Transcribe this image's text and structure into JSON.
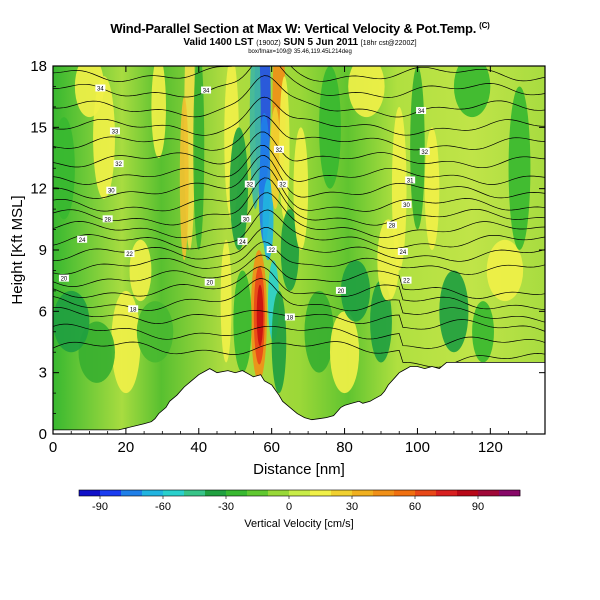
{
  "title": "Wind-Parallel Section at Max W: Vertical Velocity & Pot.Temp.",
  "title_mark": "(C)",
  "subtitle_main": "Valid 1400 LST",
  "subtitle_small": "(1900Z)",
  "subtitle_rest": "SUN 5 Jun 2011",
  "subtitle_small2": "[18hr cst@2200Z]",
  "subsubtitle": "box/fmax=109@ 35.46,119.45L214deg",
  "chart_data": {
    "type": "heatmap",
    "xlabel": "Distance [nm]",
    "ylabel": "Height [Kft MSL]",
    "xlim": [
      0,
      135
    ],
    "ylim": [
      0,
      18
    ],
    "x_ticks": [
      "0",
      "20",
      "40",
      "60",
      "80",
      "100",
      "120"
    ],
    "x_tick_values": [
      0,
      20,
      40,
      60,
      80,
      100,
      120
    ],
    "y_ticks": [
      "0",
      "3",
      "6",
      "9",
      "12",
      "15",
      "18"
    ],
    "y_tick_values": [
      0,
      3,
      6,
      9,
      12,
      15,
      18
    ],
    "terrain": {
      "x": [
        0,
        18,
        25,
        27,
        28,
        29,
        31,
        32,
        34,
        36,
        38,
        40,
        42,
        43,
        44,
        45,
        48,
        50,
        52,
        54,
        55,
        57,
        58,
        60,
        62,
        63,
        65,
        67,
        69,
        71,
        73,
        75,
        77,
        78,
        79,
        80,
        82,
        84,
        85,
        87,
        88,
        90,
        91,
        92,
        94,
        95,
        96,
        97,
        98,
        100,
        102,
        104,
        106,
        108,
        135
      ],
      "y": [
        0.2,
        0.2,
        0.5,
        0.6,
        0.75,
        1.0,
        1.3,
        1.6,
        1.9,
        2.3,
        2.6,
        2.9,
        3.1,
        3.2,
        3.1,
        3.0,
        3.1,
        3.0,
        3.1,
        2.9,
        2.8,
        2.9,
        2.6,
        2.4,
        1.9,
        1.6,
        1.3,
        1.0,
        0.8,
        0.7,
        0.75,
        0.8,
        0.9,
        1.1,
        1.3,
        1.4,
        1.5,
        1.6,
        1.5,
        1.6,
        1.7,
        1.9,
        2.1,
        2.4,
        2.8,
        3.0,
        3.1,
        3.2,
        3.3,
        3.3,
        3.2,
        3.3,
        3.2,
        3.5,
        3.5
      ]
    },
    "contour_labels": [
      {
        "text": "34",
        "x": 13,
        "y": 16.9
      },
      {
        "text": "34",
        "x": 42,
        "y": 16.8
      },
      {
        "text": "34",
        "x": 101,
        "y": 15.8
      },
      {
        "text": "33",
        "x": 17,
        "y": 14.8
      },
      {
        "text": "32",
        "x": 18,
        "y": 13.2
      },
      {
        "text": "32",
        "x": 102,
        "y": 13.8
      },
      {
        "text": "31",
        "x": 98,
        "y": 12.4
      },
      {
        "text": "32",
        "x": 62,
        "y": 13.9
      },
      {
        "text": "32",
        "x": 63,
        "y": 12.2
      },
      {
        "text": "32",
        "x": 54,
        "y": 12.2
      },
      {
        "text": "30",
        "x": 16,
        "y": 11.9
      },
      {
        "text": "30",
        "x": 97,
        "y": 11.2
      },
      {
        "text": "30",
        "x": 53,
        "y": 10.5
      },
      {
        "text": "28",
        "x": 15,
        "y": 10.5
      },
      {
        "text": "28",
        "x": 93,
        "y": 10.2
      },
      {
        "text": "24",
        "x": 8,
        "y": 9.5
      },
      {
        "text": "24",
        "x": 52,
        "y": 9.4
      },
      {
        "text": "24",
        "x": 96,
        "y": 8.9
      },
      {
        "text": "22",
        "x": 21,
        "y": 8.8
      },
      {
        "text": "22",
        "x": 60,
        "y": 9.0
      },
      {
        "text": "22",
        "x": 97,
        "y": 7.5
      },
      {
        "text": "20",
        "x": 3,
        "y": 7.6
      },
      {
        "text": "20",
        "x": 43,
        "y": 7.4
      },
      {
        "text": "20",
        "x": 79,
        "y": 7.0
      },
      {
        "text": "18",
        "x": 22,
        "y": 6.1
      },
      {
        "text": "18",
        "x": 65,
        "y": 5.7
      }
    ],
    "colorbar": {
      "title": "Vertical Velocity [cm/s]",
      "labels": [
        "-90",
        "-60",
        "-30",
        "0",
        "30",
        "60",
        "90"
      ],
      "label_values": [
        -90,
        -60,
        -30,
        0,
        30,
        60,
        90
      ],
      "min": -100,
      "max": 110,
      "colors": [
        "#1010c8",
        "#1a3cf0",
        "#1f7fe8",
        "#21b4e0",
        "#2ad0cc",
        "#38c488",
        "#20a040",
        "#38b830",
        "#60c830",
        "#98d838",
        "#c8ec48",
        "#f0f048",
        "#f0d030",
        "#f0b020",
        "#f09018",
        "#f07010",
        "#e84818",
        "#d82020",
        "#b80818",
        "#a00838",
        "#880868"
      ]
    }
  }
}
